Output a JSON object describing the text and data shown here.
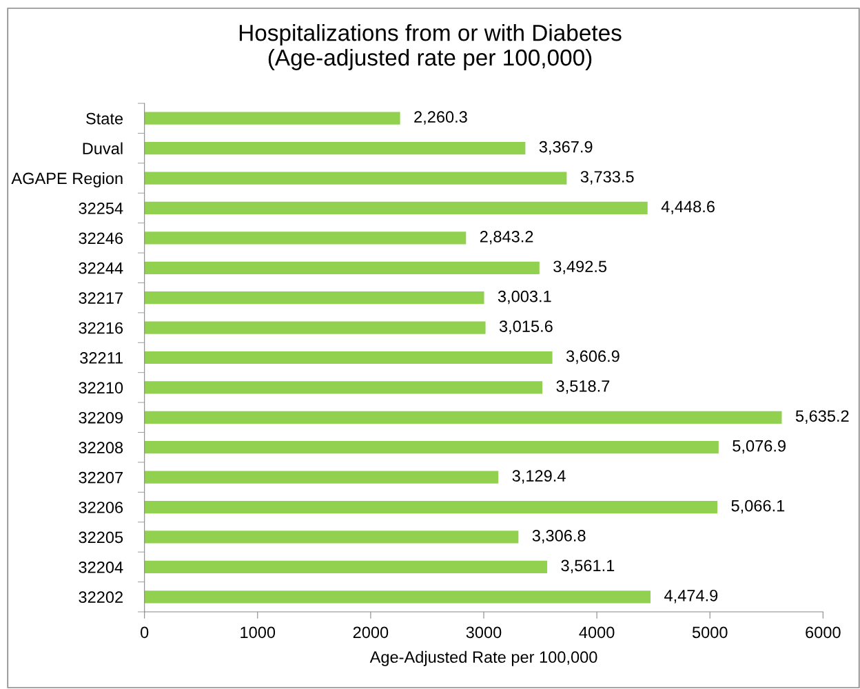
{
  "chart_data": {
    "type": "bar",
    "orientation": "horizontal",
    "title": "Hospitalizations from or with Diabetes\n(Age-adjusted rate per 100,000)",
    "xlabel": "Age-Adjusted Rate per 100,000",
    "categories": [
      "State",
      "Duval",
      "AGAPE Region",
      "32254",
      "32246",
      "32244",
      "32217",
      "32216",
      "32211",
      "32210",
      "32209",
      "32208",
      "32207",
      "32206",
      "32205",
      "32204",
      "32202"
    ],
    "values": [
      2260.3,
      3367.9,
      3733.5,
      4448.6,
      2843.2,
      3492.5,
      3003.1,
      3015.6,
      3606.9,
      3518.7,
      5635.2,
      5076.9,
      3129.4,
      5066.1,
      3306.8,
      3561.1,
      4474.9
    ],
    "value_labels": [
      "2,260.3",
      "3,367.9",
      "3,733.5",
      "4,448.6",
      "2,843.2",
      "3,492.5",
      "3,003.1",
      "3,015.6",
      "3,606.9",
      "3,518.7",
      "5,635.2",
      "5,076.9",
      "3,129.4",
      "5,066.1",
      "3,306.8",
      "3,561.1",
      "4,474.9"
    ],
    "color": "#92d050",
    "xlim": [
      0,
      6000
    ],
    "xticks": [
      0,
      1000,
      2000,
      3000,
      4000,
      5000,
      6000
    ],
    "grid": false,
    "legend": false
  }
}
